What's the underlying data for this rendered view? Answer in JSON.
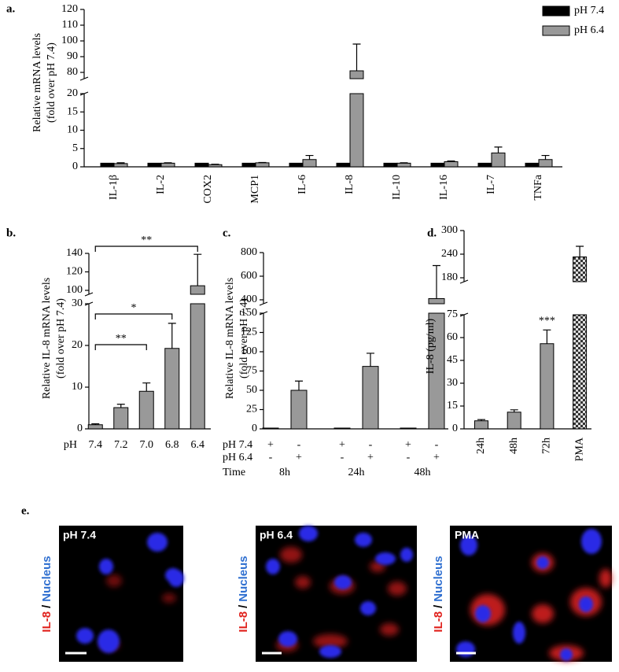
{
  "chart_data": [
    {
      "panel": "a.",
      "type": "bar",
      "ylabel": [
        "Relative mRNA levels",
        "(fold over pH 7.4)"
      ],
      "categories": [
        "IL-1β",
        "IL-2",
        "COX2",
        "MCP1",
        "IL-6",
        "IL-8",
        "IL-10",
        "IL-16",
        "IL-7",
        "TNFa"
      ],
      "series": [
        {
          "name": "pH 7.4",
          "color": "#000000",
          "values": [
            1,
            1,
            1,
            1,
            1,
            1,
            1,
            1,
            1,
            1
          ]
        },
        {
          "name": "pH 6.4",
          "color": "#999999",
          "values": [
            0.9,
            1.0,
            0.6,
            1.1,
            2.0,
            81,
            1.0,
            1.4,
            3.8,
            2.0
          ],
          "errors": [
            0.2,
            0.1,
            0.1,
            0.1,
            1.1,
            17,
            0.1,
            0.2,
            1.6,
            1.1
          ]
        }
      ],
      "ylim": [
        0,
        120
      ],
      "yticks": [
        [
          0,
          5,
          10,
          15,
          20
        ],
        [
          80,
          90,
          100,
          110,
          120
        ]
      ],
      "legend": "upper right"
    },
    {
      "panel": "b.",
      "type": "bar",
      "ylabel": [
        "Relative IL-8 mRNA levels",
        "(fold over pH 7.4)"
      ],
      "xlabel": "pH",
      "categories": [
        "7.4",
        "7.2",
        "7.0",
        "6.8",
        "6.4"
      ],
      "values": [
        1,
        5.1,
        9,
        19.3,
        105
      ],
      "errors": [
        0.2,
        0.8,
        2,
        6,
        34
      ],
      "color": "#999999",
      "ylim": [
        0,
        140
      ],
      "yticks": [
        [
          0,
          10,
          20,
          30
        ],
        [
          100,
          120,
          140
        ]
      ],
      "annotations": [
        {
          "text": "**",
          "from": "7.4",
          "to": "7.0"
        },
        {
          "text": "*",
          "from": "7.4",
          "to": "6.8"
        },
        {
          "text": "**",
          "from": "7.4",
          "to": "6.4"
        }
      ]
    },
    {
      "panel": "c.",
      "type": "bar",
      "ylabel": [
        "Relative IL-8 mRNA levels",
        "(fold over pH 7.4)"
      ],
      "xlabel": "Time",
      "categories": [
        "8h",
        "24h",
        "48h"
      ],
      "series": [
        {
          "name": "pH 7.4",
          "color": "#000000",
          "values": [
            1,
            1,
            1
          ],
          "signs": [
            "+",
            "-",
            "+",
            "-",
            "+",
            "-"
          ]
        },
        {
          "name": "pH 6.4",
          "color": "#999999",
          "values": [
            50,
            81,
            410
          ],
          "errors": [
            12,
            17,
            280
          ],
          "signs": [
            "-",
            "+",
            "-",
            "+",
            "-",
            "+"
          ]
        }
      ],
      "ylim": [
        0,
        800
      ],
      "yticks": [
        [
          0,
          25,
          50,
          75,
          100,
          125,
          150
        ],
        [
          400,
          600,
          800
        ]
      ]
    },
    {
      "panel": "d.",
      "type": "bar",
      "ylabel": [
        "IL-8 (pg/ml)"
      ],
      "categories": [
        "24h",
        "48h",
        "72h",
        "PMA"
      ],
      "values": [
        5.3,
        11,
        56,
        233
      ],
      "errors": [
        0.8,
        1.5,
        9,
        27
      ],
      "color": "#999999",
      "hatch": [
        null,
        null,
        null,
        "checkerboard"
      ],
      "ylim": [
        0,
        300
      ],
      "yticks": [
        [
          0,
          15,
          30,
          45,
          60,
          75
        ],
        [
          180,
          240,
          300
        ]
      ],
      "annotations": [
        {
          "text": "***",
          "category": "72h"
        }
      ]
    }
  ],
  "images": {
    "panel": "e.",
    "items": [
      {
        "title": "pH 7.4"
      },
      {
        "title": "pH 6.4"
      },
      {
        "title": "PMA"
      }
    ],
    "stain_label": {
      "marker": "IL-8",
      "separator": "/",
      "nucleus": "Nucleus"
    }
  }
}
